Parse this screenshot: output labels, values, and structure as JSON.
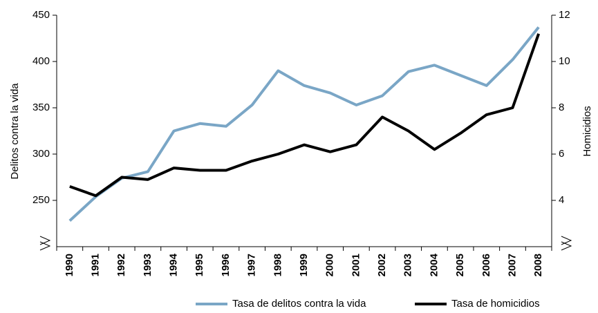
{
  "chart_data": {
    "type": "line",
    "categories": [
      "1990",
      "1991",
      "1992",
      "1993",
      "1994",
      "1995",
      "1996",
      "1997",
      "1998",
      "1999",
      "2000",
      "2001",
      "2002",
      "2003",
      "2004",
      "2005",
      "2006",
      "2007",
      "2008"
    ],
    "series": [
      {
        "name": "Tasa de delitos contra la vida",
        "color": "#7aa6c6",
        "values": [
          228,
          254,
          274,
          281,
          325,
          333,
          330,
          353,
          390,
          374,
          366,
          353,
          363,
          389,
          396,
          385,
          374,
          402,
          437
        ]
      },
      {
        "name": "Tasa de homicidios",
        "color": "#000000",
        "axis": "y2",
        "values": [
          4.6,
          4.2,
          5.0,
          4.9,
          5.4,
          5.3,
          5.3,
          5.7,
          6.0,
          6.4,
          6.1,
          6.4,
          7.6,
          7.0,
          6.2,
          6.9,
          7.7,
          8.0,
          11.2
        ]
      }
    ],
    "ylabel": "Delitos contra la vida",
    "y2label": "Homicidios",
    "ylim": [
      200,
      450
    ],
    "yticks": [
      250,
      300,
      350,
      400,
      450
    ],
    "y2lim": [
      2,
      12
    ],
    "y2ticks": [
      4,
      6,
      8,
      10,
      12
    ]
  }
}
